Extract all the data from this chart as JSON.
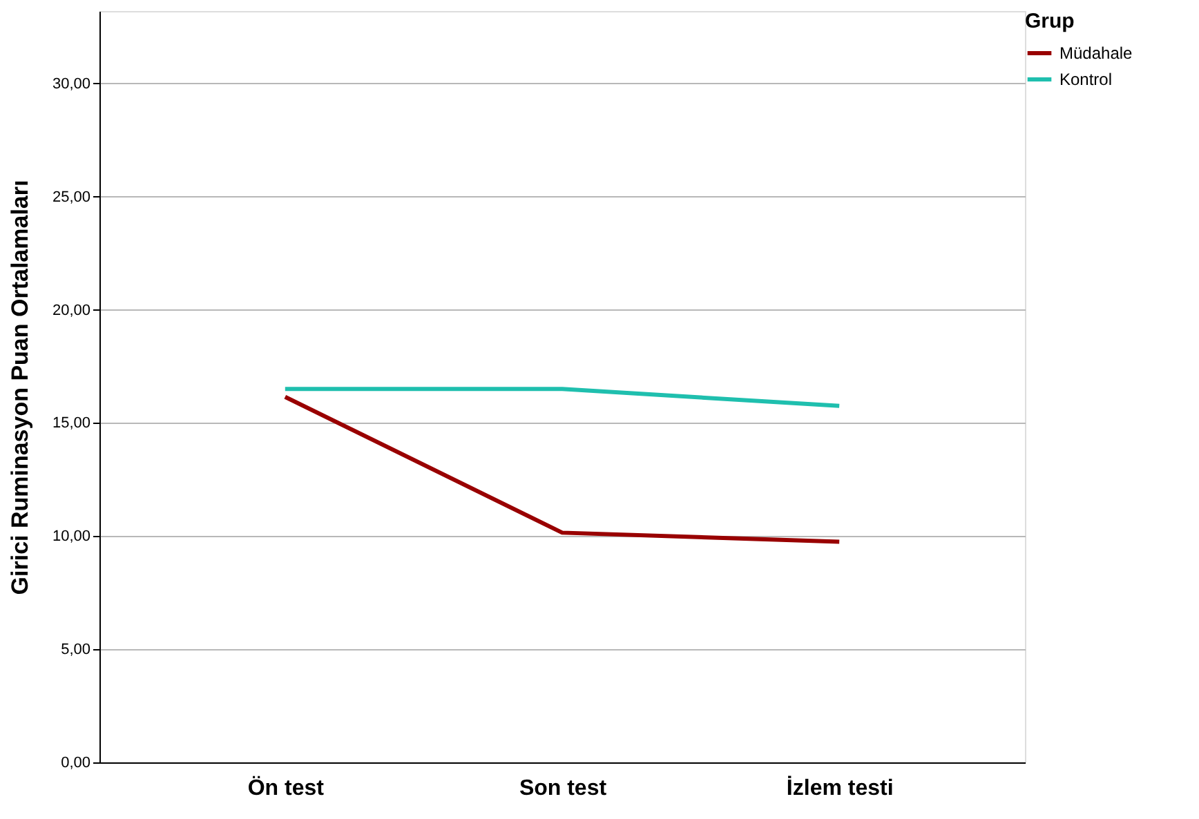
{
  "chart_data": {
    "type": "line",
    "ylabel": "Girici Ruminasyon Puan Ortalamaları",
    "legend_title": "Grup",
    "categories": [
      "Ön test",
      "Son test",
      "İzlem testi"
    ],
    "series": [
      {
        "name": "Müdahale",
        "color": "#990000",
        "values": [
          16.15,
          10.15,
          9.75
        ]
      },
      {
        "name": "Kontrol",
        "color": "#1fbfae",
        "values": [
          16.5,
          16.5,
          15.75
        ]
      }
    ],
    "ylim": [
      0,
      33.2
    ],
    "yticks": [
      {
        "value": 0,
        "label": "0,00"
      },
      {
        "value": 5,
        "label": "5,00"
      },
      {
        "value": 10,
        "label": "10,00"
      },
      {
        "value": 15,
        "label": "15,00"
      },
      {
        "value": 20,
        "label": "20,00"
      },
      {
        "value": 25,
        "label": "25,00"
      },
      {
        "value": 30,
        "label": "30,00"
      }
    ],
    "grid": "y",
    "legend": "top right",
    "marker": "none",
    "line_style": "solid"
  }
}
